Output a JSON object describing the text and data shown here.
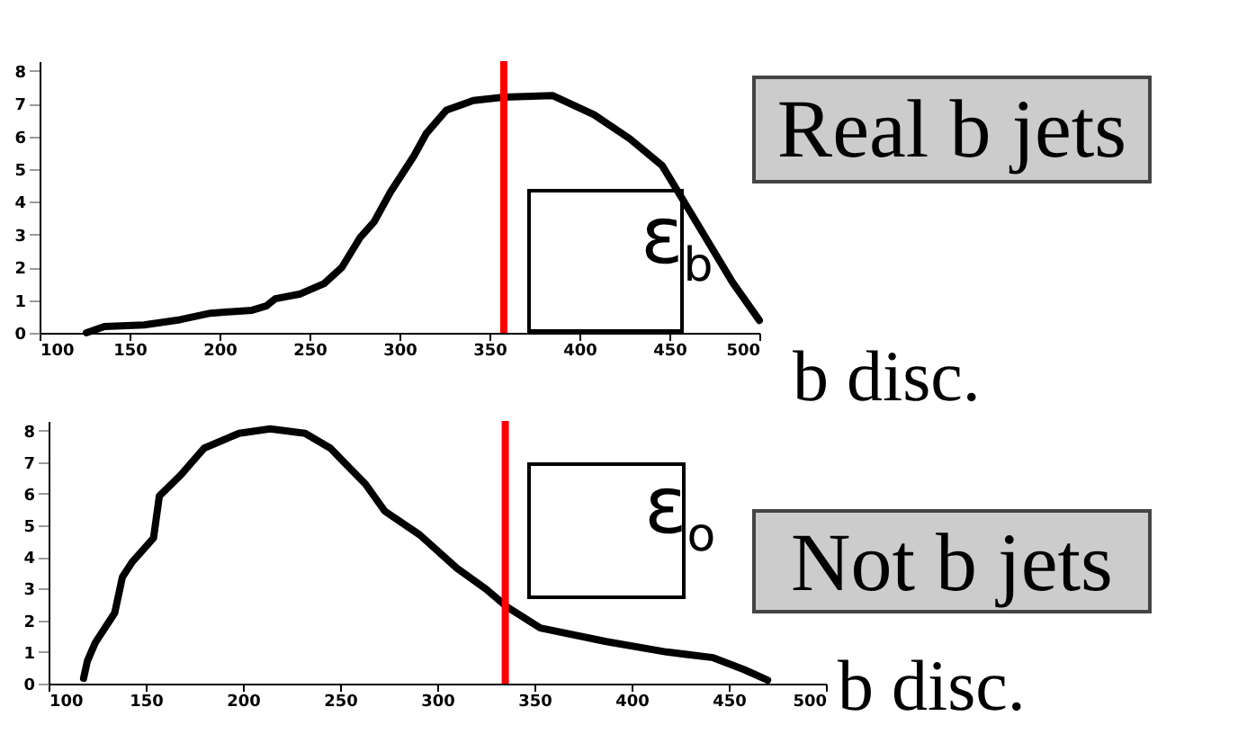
{
  "chart_data": [
    {
      "type": "line",
      "title": "Real b jets",
      "xlabel": "b disc.",
      "annotations": [
        "ε$_{b}$"
      ],
      "series": [
        {
          "color": "#000000",
          "x": [
            126,
            136,
            158,
            178,
            195,
            218,
            226,
            231,
            245,
            258,
            268,
            278,
            286,
            295,
            308,
            315,
            326,
            341,
            358,
            385,
            408,
            428,
            446,
            458,
            471,
            485,
            500
          ],
          "values": [
            0,
            0.19,
            0.24,
            0.4,
            0.6,
            0.69,
            0.82,
            1.04,
            1.19,
            1.5,
            2.0,
            2.9,
            3.4,
            4.3,
            5.4,
            6.1,
            6.8,
            7.1,
            7.2,
            7.25,
            6.67,
            5.93,
            5.11,
            4.02,
            2.83,
            1.55,
            0.38
          ]
        }
      ],
      "xlim": [
        100,
        500
      ],
      "xticks": [
        100,
        150,
        200,
        250,
        300,
        350,
        400,
        450,
        500
      ],
      "ylim": [
        0,
        8.3
      ],
      "yticks": [
        0,
        1,
        2,
        3,
        4,
        5,
        6,
        7,
        8
      ],
      "grid": false,
      "ref_lines": [
        {
          "axis": "x",
          "value": 358,
          "color": "#ff0000"
        }
      ]
    },
    {
      "type": "line",
      "title": "Not b jets",
      "xlabel": "b disc.",
      "annotations": [
        "ε$_{o}$"
      ],
      "series": [
        {
          "color": "#000000",
          "x": [
            118,
            120,
            124,
            134,
            138,
            143,
            154,
            157,
            168,
            180,
            198,
            214,
            232,
            245,
            254,
            263,
            273,
            291,
            310,
            325,
            336,
            353,
            387,
            418,
            442,
            458,
            470
          ],
          "values": [
            0.17,
            0.72,
            1.29,
            2.23,
            3.37,
            3.84,
            4.6,
            5.93,
            6.59,
            7.44,
            7.91,
            8.05,
            7.91,
            7.44,
            6.87,
            6.31,
            5.45,
            4.7,
            3.65,
            2.99,
            2.42,
            1.76,
            1.33,
            1.0,
            0.82,
            0.44,
            0.11
          ]
        }
      ],
      "xlim": [
        100,
        500
      ],
      "xticks": [
        100,
        150,
        200,
        250,
        300,
        350,
        400,
        450,
        500
      ],
      "ylim": [
        0,
        8.3
      ],
      "yticks": [
        0,
        1,
        2,
        3,
        4,
        5,
        6,
        7,
        8
      ],
      "grid": false,
      "ref_lines": [
        {
          "axis": "x",
          "value": 335,
          "color": "#ff0000"
        }
      ]
    }
  ]
}
